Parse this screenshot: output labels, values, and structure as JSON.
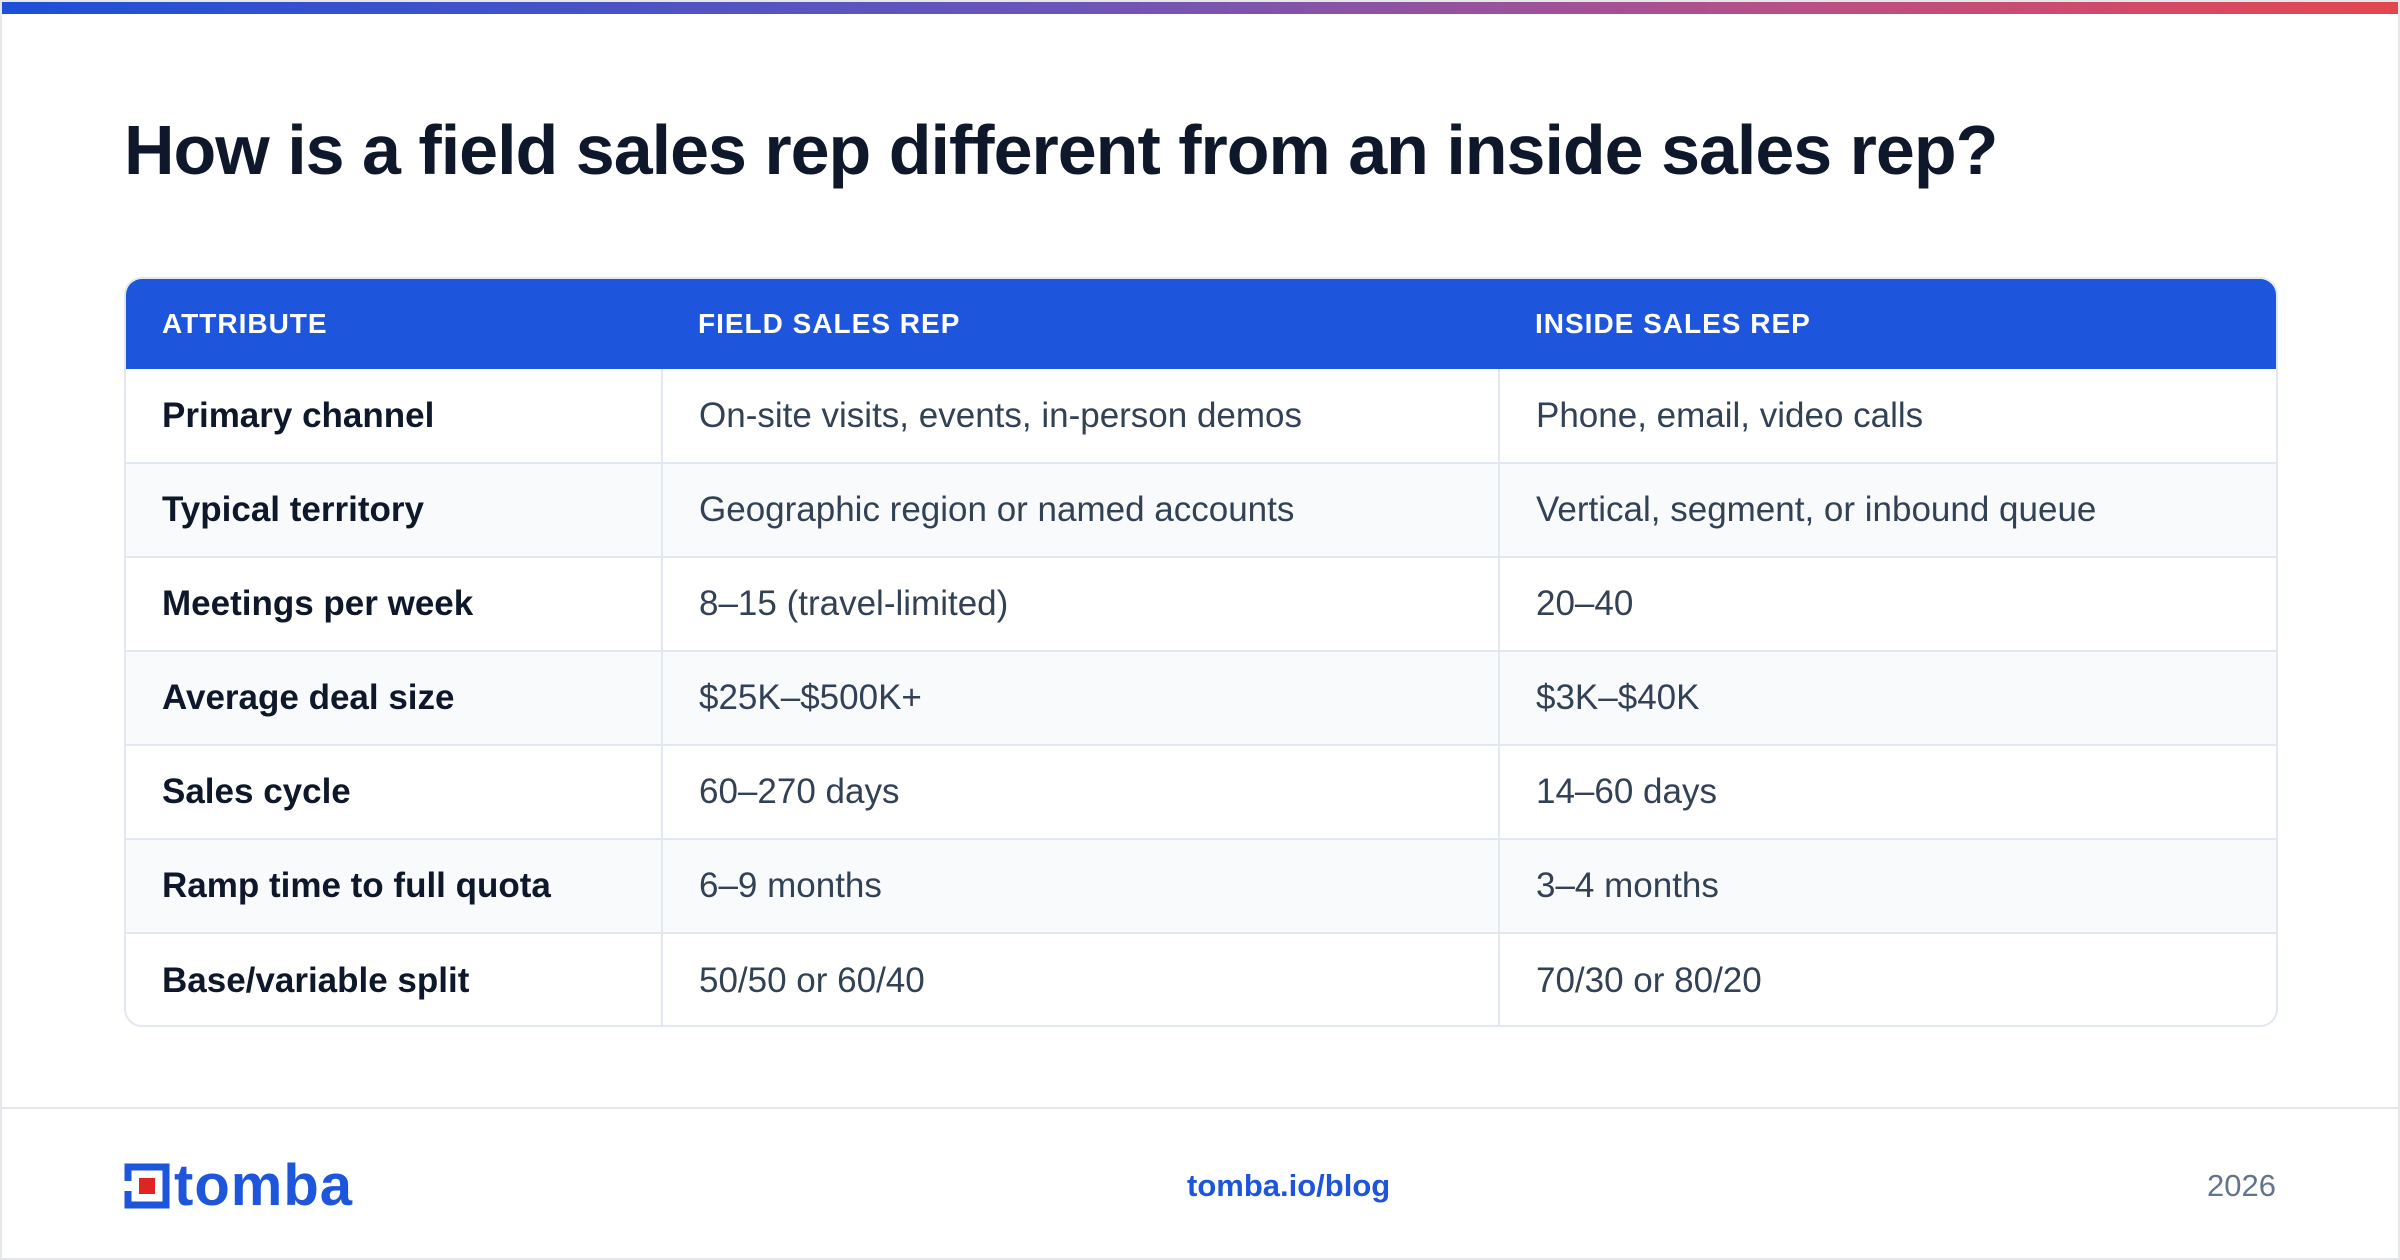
{
  "title": "How is a field sales rep different from an inside sales rep?",
  "table": {
    "headers": [
      "ATTRIBUTE",
      "FIELD SALES REP",
      "INSIDE SALES REP"
    ],
    "rows": [
      [
        "Primary channel",
        "On-site visits, events, in-person demos",
        "Phone, email, video calls"
      ],
      [
        "Typical territory",
        "Geographic region or named accounts",
        "Vertical, segment, or inbound queue"
      ],
      [
        "Meetings per week",
        "8–15 (travel-limited)",
        "20–40"
      ],
      [
        "Average deal size",
        "$25K–$500K+",
        "$3K–$40K"
      ],
      [
        "Sales cycle",
        "60–270 days",
        "14–60 days"
      ],
      [
        "Ramp time to full quota",
        "6–9 months",
        "3–4 months"
      ],
      [
        "Base/variable split",
        "50/50 or 60/40",
        "70/30 or 80/20"
      ]
    ]
  },
  "footer": {
    "logo_text": "tomba",
    "link": "tomba.io/blog",
    "year": "2026"
  },
  "colors": {
    "accent": "#1d55dc",
    "logo_red": "#e02424",
    "title": "#0f172a"
  }
}
